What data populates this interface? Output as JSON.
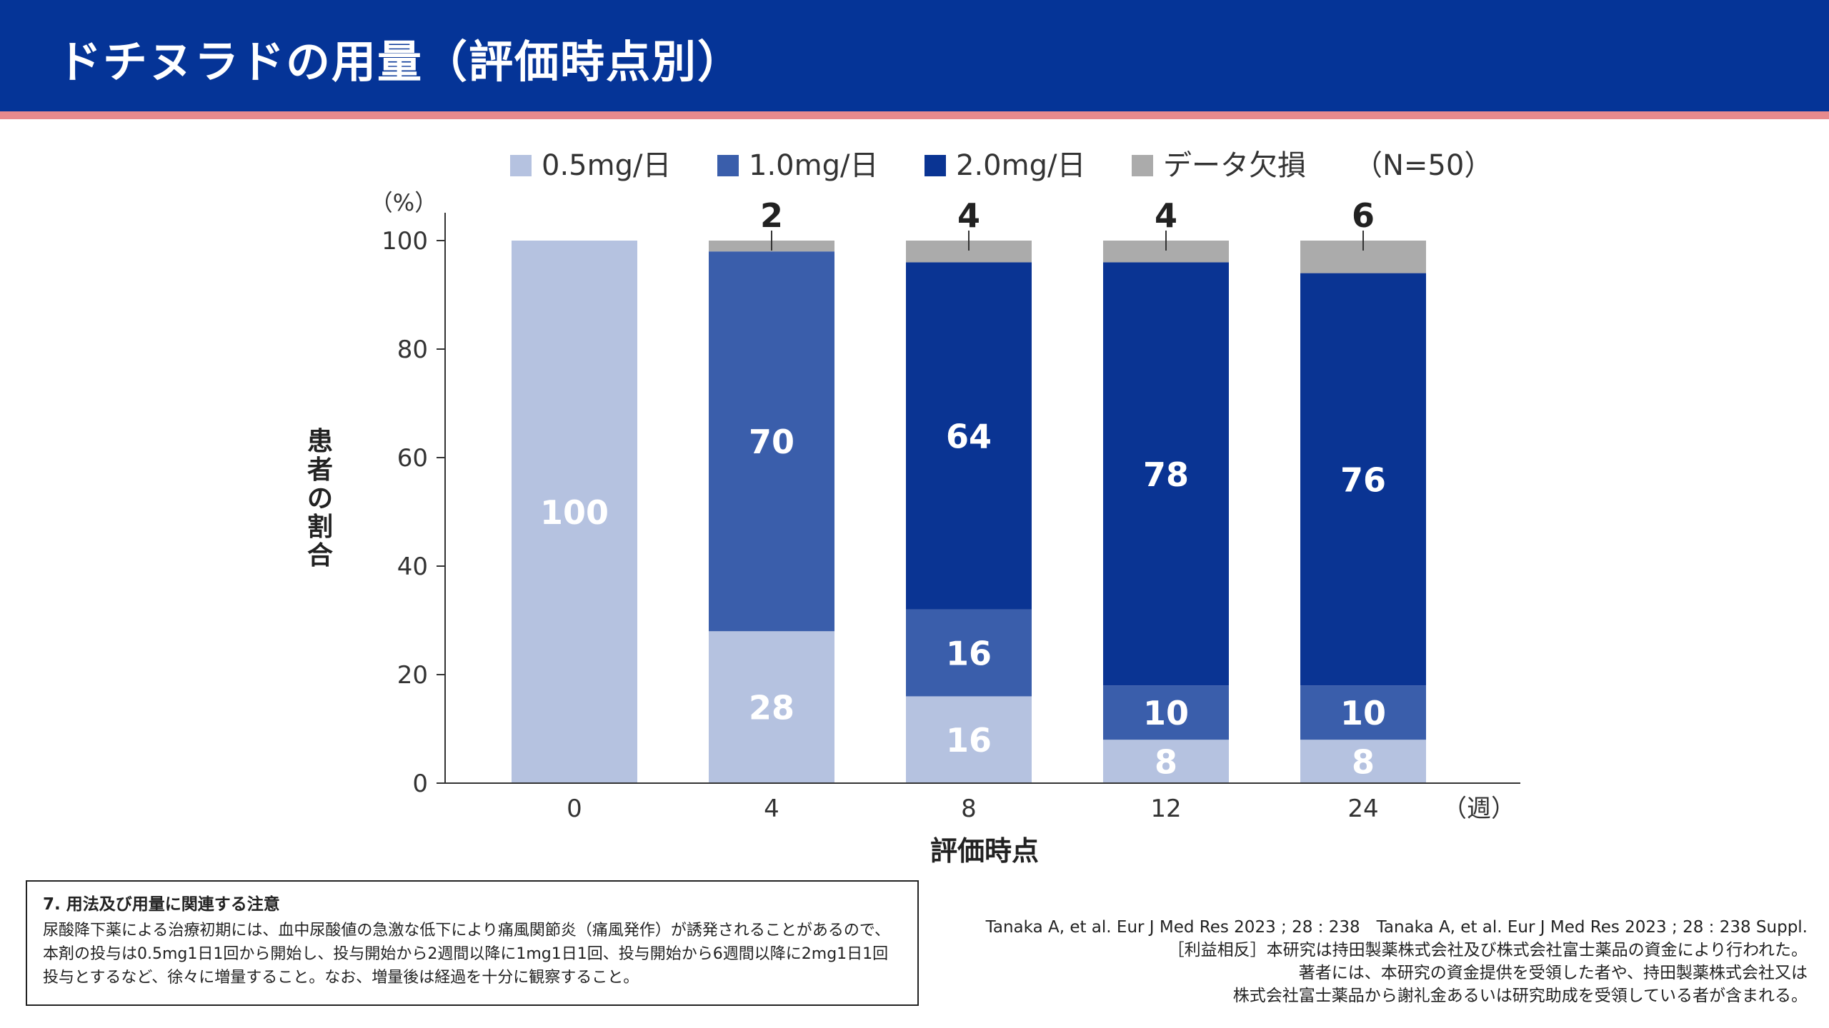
{
  "header": {
    "title": "ドチヌラドの用量（評価時点別）"
  },
  "colors": {
    "header_bg": "#053497",
    "header_stripe": "#e88a8d",
    "dose_05": "#b5c2e0",
    "dose_10": "#3a5eab",
    "dose_20": "#0a3493",
    "missing": "#ababab"
  },
  "chart_data": {
    "type": "bar",
    "stacked": true,
    "categories": [
      "0",
      "4",
      "8",
      "12",
      "24"
    ],
    "series": [
      {
        "name": "0.5mg/日",
        "values": [
          100,
          28,
          16,
          8,
          8
        ],
        "labels": [
          "100",
          "28",
          "16",
          "8",
          "8"
        ]
      },
      {
        "name": "1.0mg/日",
        "values": [
          0,
          70,
          16,
          10,
          10
        ],
        "labels": [
          "",
          "70",
          "16",
          "10",
          "10"
        ]
      },
      {
        "name": "2.0mg/日",
        "values": [
          0,
          0,
          64,
          78,
          76
        ],
        "labels": [
          "",
          "",
          "64",
          "78",
          "76"
        ]
      },
      {
        "name": "データ欠損",
        "values": [
          0,
          2,
          4,
          4,
          6
        ],
        "labels": [
          "",
          "",
          "",
          "",
          ""
        ]
      }
    ],
    "missing_labels": [
      "",
      "2",
      "4",
      "4",
      "6"
    ],
    "ylim": [
      0,
      100
    ],
    "yticks": [
      0,
      20,
      40,
      60,
      80,
      100
    ],
    "ylabel": "患者の割合",
    "yunit": "（%）",
    "xlabel": "評価時点",
    "xunit": "（週）",
    "legend_note": "（N=50）",
    "legend_position": "top"
  },
  "note": {
    "title": "7. 用法及び用量に関連する注意",
    "body": "尿酸降下薬による治療初期には、血中尿酸値の急激な低下により痛風関節炎（痛風発作）が誘発されることがあるので、本剤の投与は0.5mg1日1回から開始し、投与開始から2週間以降に1mg1日1回、投与開始から6週間以降に2mg1日1回投与とするなど、徐々に増量すること。なお、増量後は経過を十分に観察すること。"
  },
  "references": {
    "citation": "Tanaka A, et al. Eur J Med Res 2023 ; 28 : 238　Tanaka A, et al. Eur J Med Res 2023 ; 28 : 238 Suppl.",
    "coi_1": "［利益相反］本研究は持田製薬株式会社及び株式会社富士薬品の資金により行われた。",
    "coi_2": "著者には、本研究の資金提供を受領した者や、持田製薬株式会社又は",
    "coi_3": "株式会社富士薬品から謝礼金あるいは研究助成を受領している者が含まれる。"
  }
}
